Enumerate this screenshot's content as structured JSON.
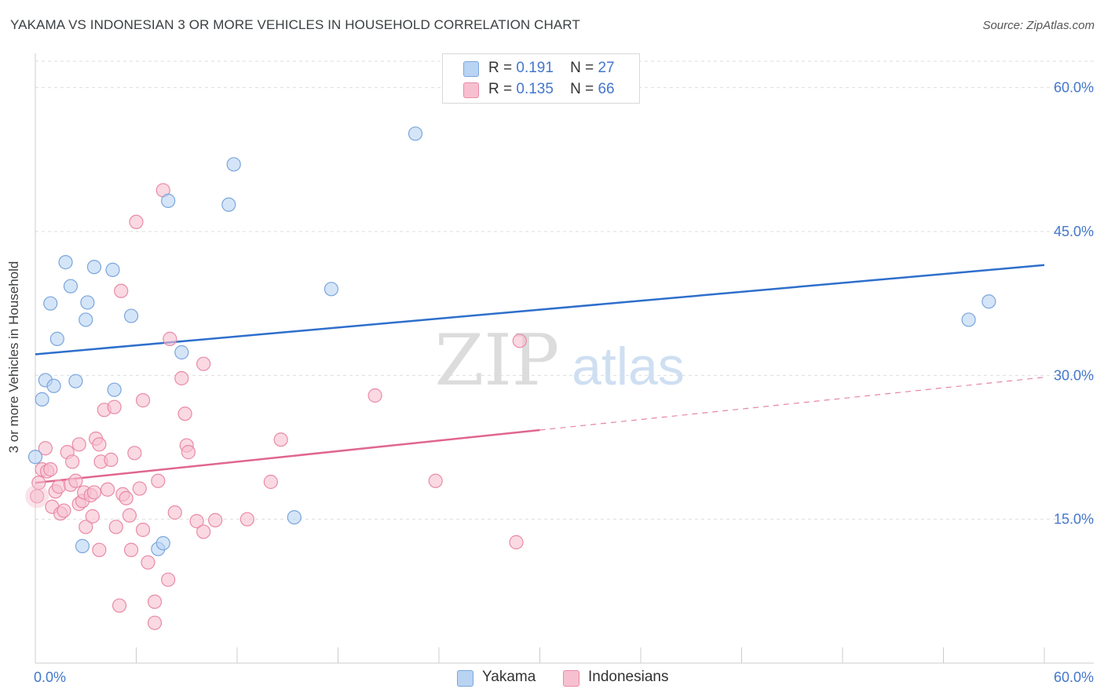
{
  "title": "YAKAMA VS INDONESIAN 3 OR MORE VEHICLES IN HOUSEHOLD CORRELATION CHART",
  "source": "Source: ZipAtlas.com",
  "watermark": {
    "zip": "ZIP",
    "atlas": "atlas"
  },
  "legend": {
    "r_label": "R =",
    "n_label": "N =",
    "series": [
      {
        "name": "Yakama",
        "r": "0.191",
        "n": "27"
      },
      {
        "name": "Indonesians",
        "r": "0.135",
        "n": "66"
      }
    ]
  },
  "colors": {
    "yakama_fill": "#b9d3f3",
    "yakama_stroke": "#7aa6dc",
    "yakama_line": "#2e6fcc",
    "indo_fill": "#f7c0d0",
    "indo_stroke": "#e98aa6",
    "indo_line": "#e06690",
    "axis_text": "#4477cc"
  },
  "chart_data": {
    "type": "scatter",
    "title": "YAKAMA VS INDONESIAN 3 OR MORE VEHICLES IN HOUSEHOLD CORRELATION CHART",
    "xlabel": "",
    "ylabel": "3 or more Vehicles in Household",
    "xlim": [
      0,
      60
    ],
    "ylim": [
      0,
      63
    ],
    "x_tick_labels": [
      "0.0%",
      "60.0%"
    ],
    "y_ticks": [
      15,
      30,
      45,
      60
    ],
    "y_tick_labels": [
      "15.0%",
      "30.0%",
      "45.0%",
      "60.0%"
    ],
    "series": [
      {
        "name": "Yakama",
        "points": [
          [
            0.0,
            21.5
          ],
          [
            0.4,
            27.5
          ],
          [
            0.6,
            29.5
          ],
          [
            0.9,
            37.5
          ],
          [
            1.3,
            33.8
          ],
          [
            1.1,
            28.9
          ],
          [
            1.8,
            41.8
          ],
          [
            2.1,
            39.3
          ],
          [
            2.4,
            29.4
          ],
          [
            2.8,
            12.2
          ],
          [
            3.1,
            37.6
          ],
          [
            3.0,
            35.8
          ],
          [
            3.5,
            41.3
          ],
          [
            4.6,
            41.0
          ],
          [
            4.7,
            28.5
          ],
          [
            5.7,
            36.2
          ],
          [
            7.3,
            11.9
          ],
          [
            7.6,
            12.5
          ],
          [
            7.9,
            48.2
          ],
          [
            8.7,
            32.4
          ],
          [
            11.5,
            47.8
          ],
          [
            11.8,
            52.0
          ],
          [
            15.4,
            15.2
          ],
          [
            17.6,
            39.0
          ],
          [
            22.6,
            55.2
          ],
          [
            55.5,
            35.8
          ],
          [
            56.7,
            37.7
          ]
        ],
        "trend": {
          "x": [
            0,
            60
          ],
          "y": [
            32.2,
            41.5
          ],
          "style": "solid"
        }
      },
      {
        "name": "Indonesians",
        "points": [
          [
            0.1,
            17.4
          ],
          [
            0.2,
            18.8
          ],
          [
            0.4,
            20.2
          ],
          [
            0.6,
            22.4
          ],
          [
            0.7,
            20.0
          ],
          [
            0.9,
            20.2
          ],
          [
            1.0,
            16.3
          ],
          [
            1.2,
            17.9
          ],
          [
            1.4,
            18.4
          ],
          [
            1.5,
            15.6
          ],
          [
            1.7,
            15.9
          ],
          [
            1.9,
            22.0
          ],
          [
            2.1,
            18.6
          ],
          [
            2.2,
            21.0
          ],
          [
            2.4,
            19.0
          ],
          [
            2.6,
            16.6
          ],
          [
            2.6,
            22.8
          ],
          [
            2.8,
            16.9
          ],
          [
            2.9,
            17.8
          ],
          [
            3.0,
            14.2
          ],
          [
            3.3,
            17.5
          ],
          [
            3.4,
            15.3
          ],
          [
            3.5,
            17.8
          ],
          [
            3.6,
            23.4
          ],
          [
            3.8,
            11.8
          ],
          [
            3.8,
            22.8
          ],
          [
            3.9,
            21.0
          ],
          [
            4.1,
            26.4
          ],
          [
            4.3,
            18.1
          ],
          [
            4.5,
            21.2
          ],
          [
            4.7,
            26.7
          ],
          [
            4.8,
            14.2
          ],
          [
            5.0,
            6.0
          ],
          [
            5.2,
            17.6
          ],
          [
            5.1,
            38.8
          ],
          [
            5.4,
            17.2
          ],
          [
            5.6,
            15.4
          ],
          [
            5.7,
            11.8
          ],
          [
            5.9,
            21.9
          ],
          [
            6.0,
            46.0
          ],
          [
            6.2,
            18.2
          ],
          [
            6.4,
            13.9
          ],
          [
            6.4,
            27.4
          ],
          [
            6.7,
            10.5
          ],
          [
            7.1,
            4.2
          ],
          [
            7.1,
            6.4
          ],
          [
            7.3,
            19.0
          ],
          [
            7.6,
            49.3
          ],
          [
            7.9,
            8.7
          ],
          [
            8.0,
            33.8
          ],
          [
            8.3,
            15.7
          ],
          [
            8.7,
            29.7
          ],
          [
            8.9,
            26.0
          ],
          [
            9.0,
            22.7
          ],
          [
            9.1,
            22.0
          ],
          [
            9.6,
            14.8
          ],
          [
            10.0,
            13.7
          ],
          [
            10.0,
            31.2
          ],
          [
            10.7,
            14.9
          ],
          [
            12.6,
            15.0
          ],
          [
            14.0,
            18.9
          ],
          [
            14.6,
            23.3
          ],
          [
            20.2,
            27.9
          ],
          [
            23.8,
            19.0
          ],
          [
            28.6,
            12.6
          ],
          [
            28.8,
            33.6
          ]
        ],
        "trend": {
          "x": [
            0,
            30,
            60
          ],
          "y": [
            18.8,
            24.3,
            29.8
          ],
          "style": "solid-then-dashed"
        }
      }
    ]
  }
}
